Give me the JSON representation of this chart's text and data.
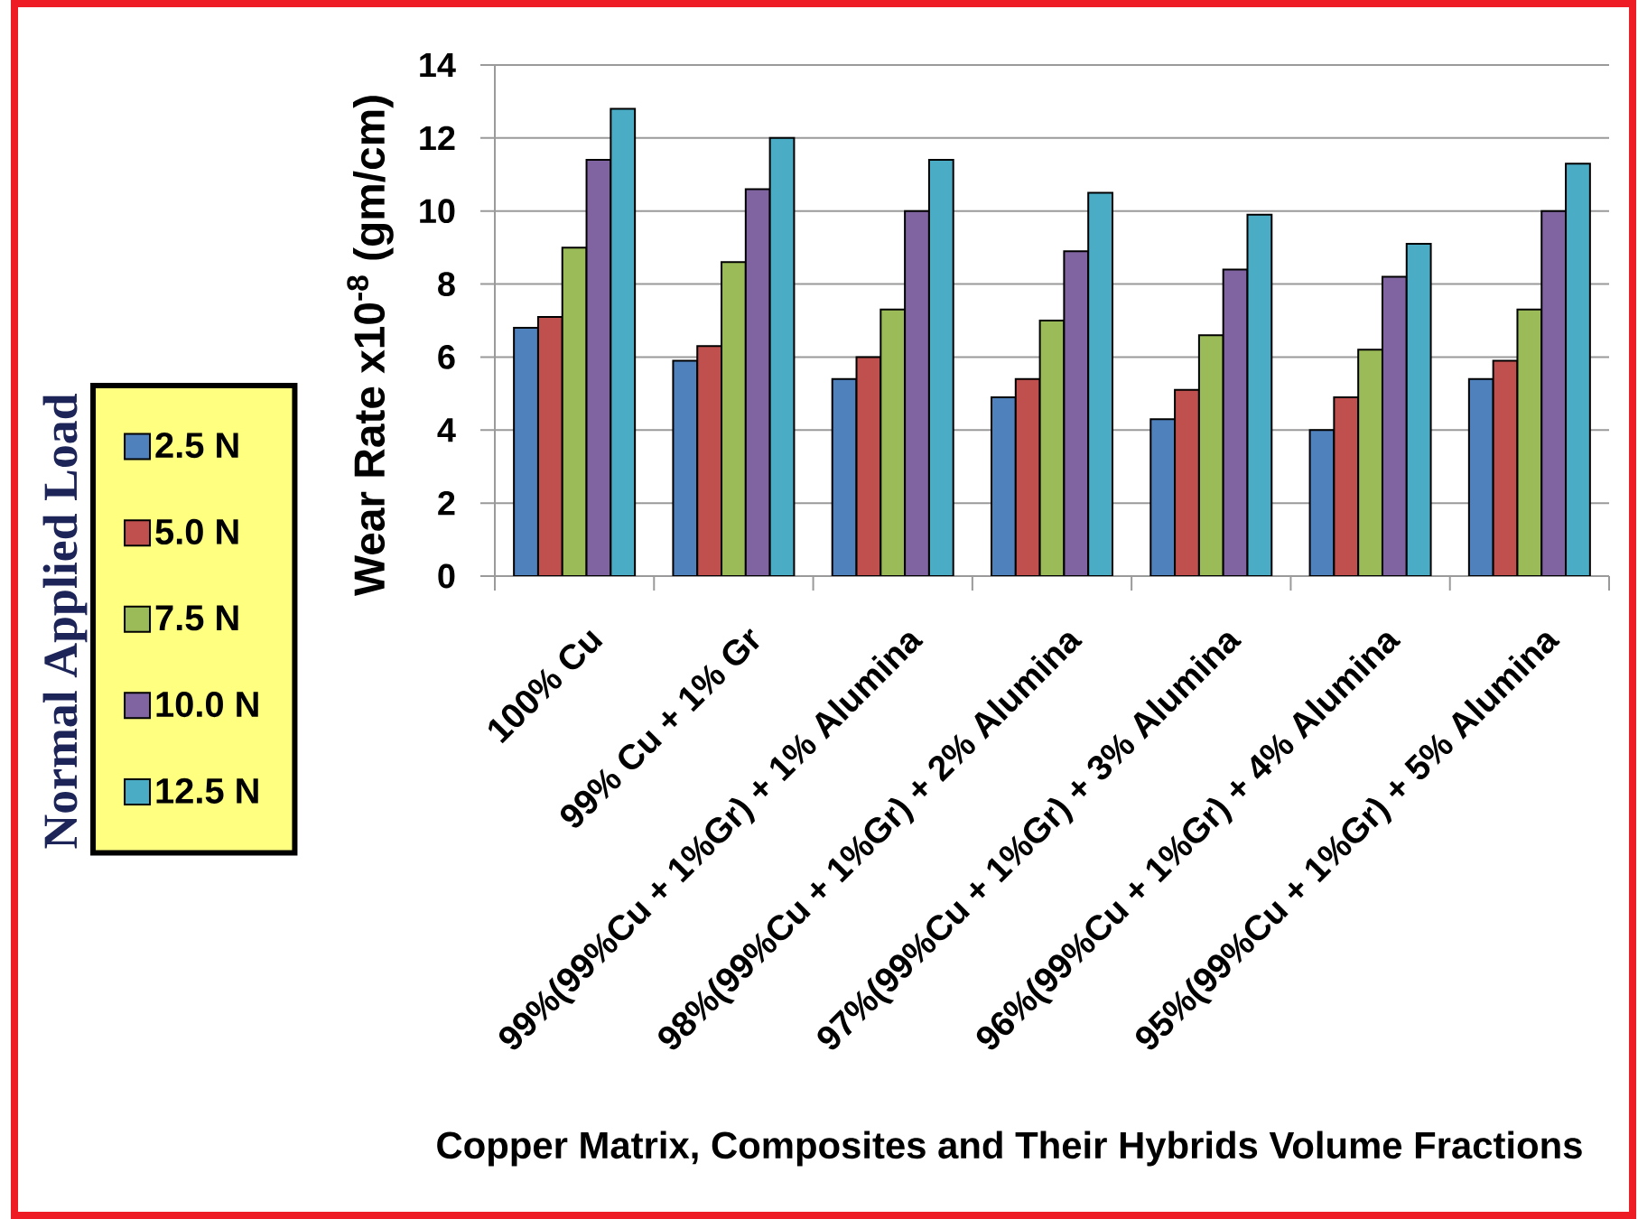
{
  "chart_data": {
    "type": "bar",
    "xlabel": "Copper Matrix, Composites and Their Hybrids Volume Fractions",
    "ylabel": "Wear Rate x10$^{-8}$ (gm/cm)",
    "legend_title": "Normal Applied Load",
    "categories": [
      "100% Cu",
      "99% Cu + 1% Gr",
      "99%(99%Cu + 1%Gr) + 1% Alumina",
      "98%(99%Cu + 1%Gr) + 2% Alumina",
      "97%(99%Cu + 1%Gr) + 3% Alumina",
      "96%(99%Cu + 1%Gr) + 4% Alumina",
      "95%(99%Cu + 1%Gr) + 5% Alumina"
    ],
    "series": [
      {
        "name": "2.5 N",
        "color": "#4f81bd",
        "values": [
          6.8,
          5.9,
          5.4,
          4.9,
          4.3,
          4.0,
          5.4
        ]
      },
      {
        "name": "5.0 N",
        "color": "#c0504d",
        "values": [
          7.1,
          6.3,
          6.0,
          5.4,
          5.1,
          4.9,
          5.9
        ]
      },
      {
        "name": "7.5 N",
        "color": "#9bbb59",
        "values": [
          9.0,
          8.6,
          7.3,
          7.0,
          6.6,
          6.2,
          7.3
        ]
      },
      {
        "name": "10.0 N",
        "color": "#8064a2",
        "values": [
          11.4,
          10.6,
          10.0,
          8.9,
          8.4,
          8.2,
          10.0
        ]
      },
      {
        "name": "12.5 N",
        "color": "#4bacc6",
        "values": [
          12.8,
          12.0,
          11.4,
          10.5,
          9.9,
          9.1,
          11.3
        ]
      }
    ],
    "ylim": [
      0,
      14
    ],
    "yticks": [
      0,
      2,
      4,
      6,
      8,
      10,
      12,
      14
    ],
    "grid": "y",
    "legend": "left"
  }
}
